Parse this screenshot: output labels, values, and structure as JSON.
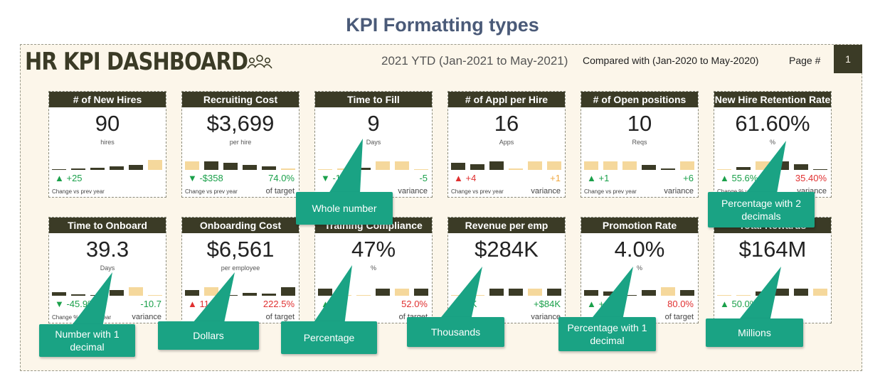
{
  "page_title": "KPI Formatting types",
  "dashboard": {
    "title": "HR KPI DASHBOARD",
    "period": "2021 YTD (Jan-2021 to May-2021)",
    "compared": "Compared with  (Jan-2020 to May-2020)",
    "page_label": "Page #",
    "page_number": "1"
  },
  "colors": {
    "dark": "#3b3b26",
    "light_bar": "#f5d89c",
    "callout": "#1aa384",
    "green": "#1aa04a",
    "red": "#e03030"
  },
  "kpis": [
    {
      "title": "# of New Hires",
      "value": "90",
      "unit": "hires",
      "left": "▲ +25",
      "right": "",
      "sub_left": "Change vs prev year",
      "sub_right": ""
    },
    {
      "title": "Recruiting Cost",
      "value": "$3,699",
      "unit": "per hire",
      "left": "▼ -$358",
      "right": "74.0%",
      "sub_left": "Change vs prev year",
      "sub_right": "of target"
    },
    {
      "title": "Time to Fill",
      "value": "9",
      "unit": "Days",
      "left": "▼ -10",
      "right": "-5",
      "sub_left": "",
      "sub_right": "variance"
    },
    {
      "title": "# of Appl per Hire",
      "value": "16",
      "unit": "Apps",
      "left": "▲ +4",
      "right": "+1",
      "sub_left": "Change vs prev year",
      "sub_right": "variance"
    },
    {
      "title": "# of Open positions",
      "value": "10",
      "unit": "Reqs",
      "left": "▲ +1",
      "right": "+6",
      "sub_left": "Change vs prev year",
      "sub_right": "variance"
    },
    {
      "title": "New Hire Retention Rate",
      "value": "61.60%",
      "unit": "%",
      "left": "▲ 55.6%",
      "right": "35.40%",
      "sub_left": "Change % vs prev year",
      "sub_right": "variance"
    },
    {
      "title": "Time to Onboard",
      "value": "39.3",
      "unit": "Days",
      "left": "▼ -45.9%",
      "right": "-10.7",
      "sub_left": "Change % vs prev year",
      "sub_right": "variance"
    },
    {
      "title": "Onboarding Cost",
      "value": "$6,561",
      "unit": "per employee",
      "left": "▲ 11.2",
      "right": "222.5%",
      "sub_left": "",
      "sub_right": "of target"
    },
    {
      "title": "Training Compliance",
      "value": "47%",
      "unit": "%",
      "left": "▲ 7",
      "right": "52.0%",
      "sub_left": "Change",
      "sub_right": "of target"
    },
    {
      "title": "Revenue per emp",
      "value": "$284K",
      "unit": "",
      "left": "▲ 9K",
      "right": "+$84K",
      "sub_left": "",
      "sub_right": "variance"
    },
    {
      "title": "Promotion Rate",
      "value": "4.0%",
      "unit": "%",
      "left": "▲ +1.0",
      "right": "80.0%",
      "sub_left": "",
      "sub_right": "of target"
    },
    {
      "title": "Total Rewards",
      "value": "$164M",
      "unit": "",
      "left": "▲ 50.0%",
      "right": "",
      "sub_left": "",
      "sub_right": ""
    }
  ],
  "callouts": [
    {
      "text": "Whole number"
    },
    {
      "text": "Percentage with 2 decimals"
    },
    {
      "text": "Number with 1 decimal"
    },
    {
      "text": "Dollars"
    },
    {
      "text": "Percentage"
    },
    {
      "text": "Thousands"
    },
    {
      "text": "Percentage with 1 decimal"
    },
    {
      "text": "Millions"
    }
  ]
}
